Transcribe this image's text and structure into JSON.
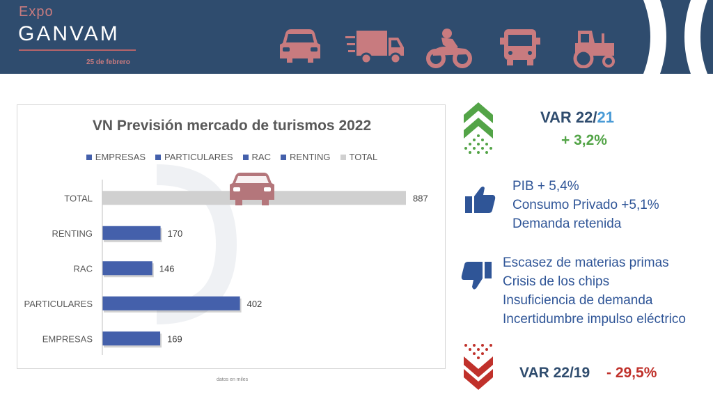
{
  "header": {
    "logo_expo": "Expo",
    "logo_brand": "GANVAM",
    "event_date": "25 de febrero",
    "vehicle_icons": [
      "car-icon",
      "truck-icon",
      "motorcycle-icon",
      "bus-icon",
      "tractor-icon"
    ],
    "colors": {
      "background": "#2f4c6e",
      "accent": "#c87b7f"
    }
  },
  "chart_data": {
    "type": "bar",
    "orientation": "horizontal",
    "title": "VN Previsión mercado de turismos 2022",
    "legend": [
      "EMPRESAS",
      "PARTICULARES",
      "RAC",
      "RENTING",
      "TOTAL"
    ],
    "legend_position": "top",
    "categories": [
      "TOTAL",
      "RENTING",
      "RAC",
      "PARTICULARES",
      "EMPRESAS"
    ],
    "values": [
      887,
      170,
      146,
      402,
      169
    ],
    "colors": [
      "#d0d0d0",
      "#4460ab",
      "#4460ab",
      "#4460ab",
      "#4460ab"
    ],
    "xlim": [
      0,
      887
    ],
    "grid": false,
    "footnote": "datos en miles"
  },
  "summary": {
    "var_2221_prefix": "VAR 22/",
    "var_2221_suffix": "21",
    "var_2221_value": "+ 3,2%",
    "positives": [
      "PIB + 5,4%",
      "Consumo Privado +5,1%",
      "Demanda  retenida"
    ],
    "negatives": [
      "Escasez de materias primas",
      "Crisis de los chips",
      "Insuficiencia de demanda",
      "Incertidumbre impulso eléctrico"
    ],
    "var_2219_label": "VAR 22/19",
    "var_2219_value": "- 29,5%"
  }
}
